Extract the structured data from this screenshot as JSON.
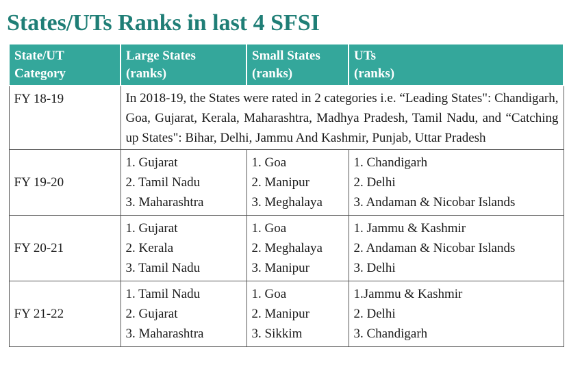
{
  "title": "States/UTs Ranks in last 4 SFSI",
  "header": {
    "col1": [
      "State/UT",
      "Category"
    ],
    "col2": [
      "Large States",
      "(ranks)"
    ],
    "col3": [
      "Small States",
      "(ranks)"
    ],
    "col4": [
      "UTs",
      "(ranks)"
    ]
  },
  "rows": [
    {
      "year": "FY 18-19",
      "note": "In 2018-19, the States were rated in 2 categories i.e. “Leading States\": Chandigarh, Goa, Gujarat, Kerala, Maharashtra, Madhya Pradesh, Tamil Nadu, and “Catching up States\": Bihar, Delhi, Jammu And Kashmir, Punjab, Uttar Pradesh"
    },
    {
      "year": "FY 19-20",
      "large": [
        "1. Gujarat",
        "2. Tamil Nadu",
        "3. Maharashtra"
      ],
      "small": [
        "1. Goa",
        "2. Manipur",
        "3. Meghalaya"
      ],
      "uts": [
        "1. Chandigarh",
        "2. Delhi",
        "3. Andaman & Nicobar Islands"
      ]
    },
    {
      "year": "FY 20-21",
      "large": [
        "1. Gujarat",
        "2. Kerala",
        "3. Tamil Nadu"
      ],
      "small": [
        "1. Goa",
        "2. Meghalaya",
        "3. Manipur"
      ],
      "uts": [
        "1. Jammu & Kashmir",
        "2. Andaman & Nicobar Islands",
        "3. Delhi"
      ]
    },
    {
      "year": "FY 21-22",
      "large": [
        "1. Tamil Nadu",
        "2. Gujarat",
        "3. Maharashtra"
      ],
      "small": [
        "1. Goa",
        "2. Manipur",
        "3. Sikkim"
      ],
      "uts": [
        "1.Jammu & Kashmir",
        "2. Delhi",
        "3. Chandigarh"
      ]
    }
  ],
  "colors": {
    "title": "#1f7e76",
    "header_bg": "#34a79b",
    "header_text": "#ffffff",
    "border": "#555555"
  }
}
